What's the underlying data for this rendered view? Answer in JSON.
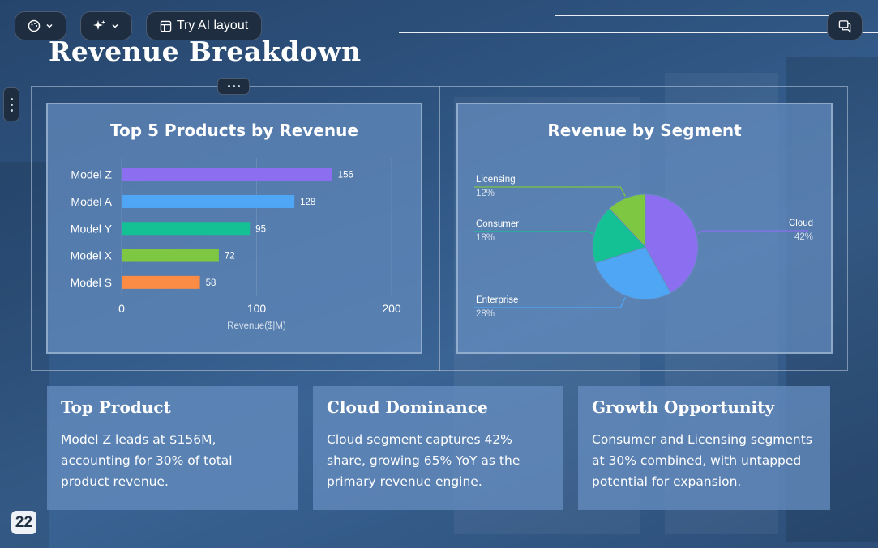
{
  "toolbar": {
    "palette_icon": "palette-icon",
    "ai_icon": "sparkle-icon",
    "try_ai_label": "Try AI layout",
    "comment_icon": "comment-icon"
  },
  "slide": {
    "title": "Revenue Breakdown",
    "page_number": "22"
  },
  "chart_data": [
    {
      "type": "bar",
      "orientation": "horizontal",
      "title": "Top 5 Products by Revenue",
      "categories": [
        "Model Z",
        "Model A",
        "Model Y",
        "Model X",
        "Model S"
      ],
      "values": [
        156,
        128,
        95,
        72,
        58
      ],
      "colors": [
        "#8b6ff0",
        "#4ea6f5",
        "#14c195",
        "#7dc742",
        "#fb8c46"
      ],
      "xlabel": "Revenue($|M)",
      "ylabel": "",
      "xlim": [
        0,
        200
      ],
      "xticks": [
        0,
        100,
        200
      ],
      "grid": true,
      "legend": "none"
    },
    {
      "type": "pie",
      "title": "Revenue by Segment",
      "labels": [
        "Cloud",
        "Enterprise",
        "Consumer",
        "Licensing"
      ],
      "values": [
        42,
        28,
        18,
        12
      ],
      "value_labels": [
        "42%",
        "28%",
        "18%",
        "12%"
      ],
      "colors": [
        "#8b6ff0",
        "#4ea6f5",
        "#14c195",
        "#7dc742"
      ],
      "legend": "none"
    }
  ],
  "cards": [
    {
      "heading": "Top Product",
      "text": "Model Z leads at $156M, accounting for 30% of total product revenue."
    },
    {
      "heading": "Cloud Dominance",
      "text": "Cloud segment captures 42% share, growing 65% YoY as the primary revenue engine."
    },
    {
      "heading": "Growth Opportunity",
      "text": "Consumer and Licensing segments at 30% combined, with untapped potential for expansion."
    }
  ]
}
